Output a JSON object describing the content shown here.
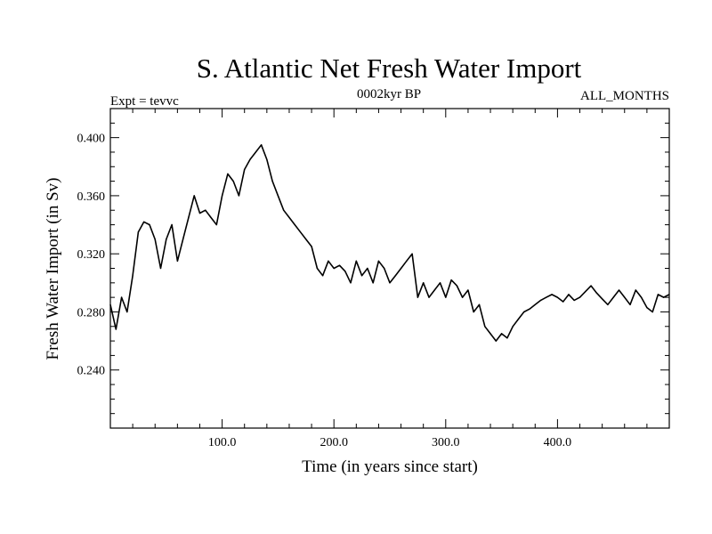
{
  "chart_data": {
    "type": "line",
    "title": "S. Atlantic Net Fresh Water Import",
    "subtitle_left": "Expt = tevvc",
    "subtitle_center": "0002kyr BP",
    "subtitle_right": "ALL_MONTHS",
    "xlabel": "Time (in years since start)",
    "ylabel": "Fresh Water Import (in Sv)",
    "xlim": [
      0,
      500
    ],
    "ylim": [
      0.2,
      0.42
    ],
    "x_major_ticks": [
      100,
      200,
      300,
      400
    ],
    "x_tick_labels": [
      "100.0",
      "200.0",
      "300.0",
      "400.0"
    ],
    "y_major_ticks": [
      0.24,
      0.28,
      0.32,
      0.36,
      0.4
    ],
    "y_tick_labels": [
      "0.240",
      "0.280",
      "0.320",
      "0.360",
      "0.400"
    ],
    "grid": false,
    "series": [
      {
        "name": "Fresh Water Import",
        "x": [
          0,
          5,
          10,
          15,
          20,
          25,
          30,
          35,
          40,
          45,
          50,
          55,
          60,
          65,
          70,
          75,
          80,
          85,
          90,
          95,
          100,
          105,
          110,
          115,
          120,
          125,
          130,
          135,
          140,
          145,
          150,
          155,
          160,
          165,
          170,
          175,
          180,
          185,
          190,
          195,
          200,
          205,
          210,
          215,
          220,
          225,
          230,
          235,
          240,
          245,
          250,
          255,
          260,
          265,
          270,
          275,
          280,
          285,
          290,
          295,
          300,
          305,
          310,
          315,
          320,
          325,
          330,
          335,
          340,
          345,
          350,
          355,
          360,
          365,
          370,
          375,
          380,
          385,
          390,
          395,
          400,
          405,
          410,
          415,
          420,
          425,
          430,
          435,
          440,
          445,
          450,
          455,
          460,
          465,
          470,
          475,
          480,
          485,
          490,
          495,
          500
        ],
        "values": [
          0.285,
          0.268,
          0.29,
          0.28,
          0.305,
          0.335,
          0.342,
          0.34,
          0.33,
          0.31,
          0.33,
          0.34,
          0.315,
          0.33,
          0.345,
          0.36,
          0.348,
          0.35,
          0.345,
          0.34,
          0.36,
          0.375,
          0.37,
          0.36,
          0.378,
          0.385,
          0.39,
          0.395,
          0.385,
          0.37,
          0.36,
          0.35,
          0.345,
          0.34,
          0.335,
          0.33,
          0.325,
          0.31,
          0.305,
          0.315,
          0.31,
          0.312,
          0.308,
          0.3,
          0.315,
          0.305,
          0.31,
          0.3,
          0.315,
          0.31,
          0.3,
          0.305,
          0.31,
          0.315,
          0.32,
          0.29,
          0.3,
          0.29,
          0.295,
          0.3,
          0.29,
          0.302,
          0.298,
          0.29,
          0.295,
          0.28,
          0.285,
          0.27,
          0.265,
          0.26,
          0.265,
          0.262,
          0.27,
          0.275,
          0.28,
          0.282,
          0.285,
          0.288,
          0.29,
          0.292,
          0.29,
          0.287,
          0.292,
          0.288,
          0.29,
          0.294,
          0.298,
          0.293,
          0.289,
          0.285,
          0.29,
          0.295,
          0.29,
          0.285,
          0.295,
          0.29,
          0.283,
          0.28,
          0.292,
          0.29,
          0.292
        ],
        "color": "#000000"
      }
    ]
  }
}
